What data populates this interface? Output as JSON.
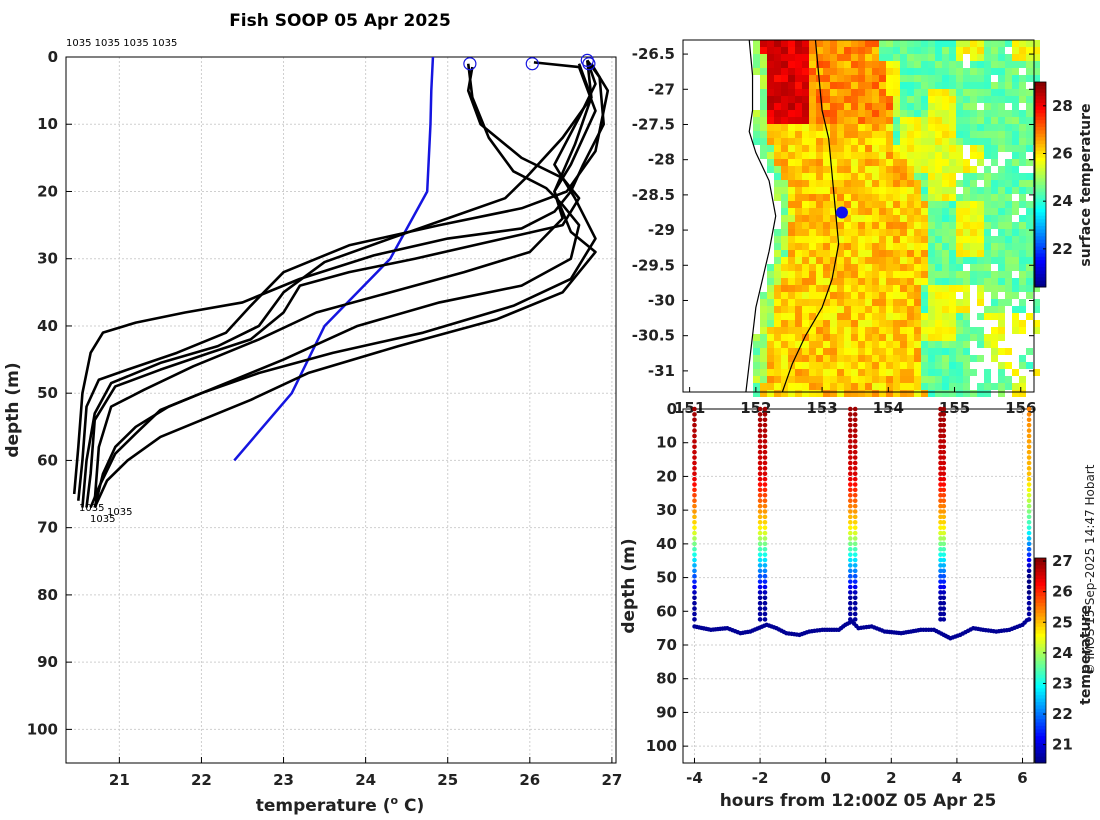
{
  "figure": {
    "title": "Fish SOOP 05 Apr 2025",
    "credit": "© IMOS 15-Sep-2025 14:47 Hobart"
  },
  "chart_data": [
    {
      "name": "profiles",
      "type": "line",
      "title": "Fish SOOP 05 Apr 2025",
      "xlabel": "temperature (o C)",
      "ylabel": "depth (m)",
      "xlim": [
        20.35,
        27.05
      ],
      "ylim": [
        105,
        0
      ],
      "xticks": [
        21,
        22,
        23,
        24,
        25,
        26,
        27
      ],
      "yticks": [
        0,
        10,
        20,
        30,
        40,
        50,
        60,
        70,
        80,
        90,
        100
      ],
      "top_labels": "1035 1035 1035 1035",
      "bottom_labels": [
        "1035",
        "1035",
        "1035"
      ],
      "reference": {
        "name": "climatology",
        "color": "#1515e0",
        "points": [
          [
            24.82,
            0
          ],
          [
            24.8,
            5
          ],
          [
            24.79,
            10
          ],
          [
            24.75,
            20
          ],
          [
            24.3,
            30
          ],
          [
            23.5,
            40
          ],
          [
            23.1,
            50
          ],
          [
            22.4,
            60
          ]
        ]
      },
      "series_color": "#000000",
      "series": [
        {
          "points": [
            [
              26.7,
              0.5
            ],
            [
              26.85,
              3
            ],
            [
              26.9,
              10
            ],
            [
              26.65,
              16
            ],
            [
              26.5,
              20
            ],
            [
              26.3,
              23
            ],
            [
              25.9,
              25.5
            ],
            [
              25.0,
              27
            ],
            [
              24.1,
              29.5
            ],
            [
              23.2,
              33
            ],
            [
              22.5,
              36.5
            ],
            [
              21.8,
              38
            ],
            [
              21.2,
              39.5
            ],
            [
              20.8,
              41
            ],
            [
              20.65,
              44
            ],
            [
              20.55,
              50
            ],
            [
              20.5,
              58
            ],
            [
              20.45,
              65
            ]
          ]
        },
        {
          "points": [
            [
              26.75,
              1
            ],
            [
              26.95,
              5
            ],
            [
              26.8,
              14
            ],
            [
              26.45,
              20
            ],
            [
              25.9,
              22.5
            ],
            [
              24.9,
              25
            ],
            [
              23.8,
              28
            ],
            [
              23.0,
              32
            ],
            [
              22.6,
              37
            ],
            [
              22.3,
              41
            ],
            [
              21.7,
              44
            ],
            [
              21.1,
              46.5
            ],
            [
              20.75,
              48
            ],
            [
              20.6,
              52
            ],
            [
              20.55,
              60
            ],
            [
              20.5,
              66
            ]
          ]
        },
        {
          "points": [
            [
              26.6,
              1
            ],
            [
              26.75,
              6
            ],
            [
              26.4,
              12
            ],
            [
              25.95,
              18
            ],
            [
              25.7,
              21
            ],
            [
              25.0,
              24
            ],
            [
              24.3,
              27
            ],
            [
              23.5,
              30.5
            ],
            [
              23.0,
              35
            ],
            [
              22.7,
              40
            ],
            [
              22.2,
              43
            ],
            [
              21.5,
              45.5
            ],
            [
              20.9,
              48.5
            ],
            [
              20.7,
              53
            ],
            [
              20.6,
              60
            ],
            [
              20.55,
              67
            ]
          ]
        },
        {
          "points": [
            [
              25.3,
              1.5
            ],
            [
              25.25,
              5
            ],
            [
              25.4,
              10
            ],
            [
              25.9,
              15
            ],
            [
              26.4,
              18
            ],
            [
              26.6,
              21
            ],
            [
              26.4,
              25
            ],
            [
              25.5,
              27.5
            ],
            [
              24.6,
              30
            ],
            [
              23.8,
              32
            ],
            [
              23.2,
              34
            ],
            [
              23.0,
              38
            ],
            [
              22.6,
              42
            ],
            [
              22.1,
              44
            ],
            [
              21.5,
              46.5
            ],
            [
              20.95,
              49
            ],
            [
              20.7,
              54
            ],
            [
              20.65,
              62
            ],
            [
              20.6,
              67
            ]
          ]
        },
        {
          "points": [
            [
              26.05,
              0.8
            ],
            [
              26.6,
              1.5
            ],
            [
              26.8,
              8
            ],
            [
              26.5,
              16
            ],
            [
              26.3,
              20
            ],
            [
              26.4,
              24
            ],
            [
              26.0,
              29
            ],
            [
              25.2,
              32
            ],
            [
              24.3,
              35
            ],
            [
              23.4,
              38
            ],
            [
              22.7,
              42
            ],
            [
              21.9,
              46
            ],
            [
              21.3,
              49.5
            ],
            [
              20.9,
              52
            ],
            [
              20.75,
              58
            ],
            [
              20.7,
              66
            ]
          ]
        },
        {
          "points": [
            [
              26.7,
              0.5
            ],
            [
              26.8,
              4
            ],
            [
              26.6,
              9
            ],
            [
              26.3,
              16
            ],
            [
              26.55,
              21
            ],
            [
              26.8,
              27
            ],
            [
              26.5,
              33
            ],
            [
              25.8,
              37
            ],
            [
              24.7,
              41
            ],
            [
              23.6,
              44
            ],
            [
              22.7,
              47
            ],
            [
              22.0,
              50
            ],
            [
              21.5,
              52.5
            ],
            [
              21.2,
              56
            ],
            [
              20.95,
              59
            ],
            [
              20.75,
              64
            ],
            [
              20.65,
              67
            ]
          ]
        },
        {
          "points": [
            [
              25.25,
              1
            ],
            [
              25.3,
              6
            ],
            [
              25.5,
              12
            ],
            [
              25.8,
              17
            ],
            [
              26.2,
              19.5
            ],
            [
              26.4,
              22
            ],
            [
              26.6,
              25
            ],
            [
              26.5,
              30
            ],
            [
              25.9,
              34
            ],
            [
              24.9,
              36.5
            ],
            [
              23.9,
              40
            ],
            [
              23.0,
              45
            ],
            [
              22.2,
              49
            ],
            [
              21.6,
              52
            ],
            [
              21.2,
              55
            ],
            [
              20.95,
              58
            ],
            [
              20.8,
              62
            ],
            [
              20.7,
              67
            ]
          ]
        },
        {
          "points": [
            [
              26.7,
              0.5
            ],
            [
              26.75,
              6
            ],
            [
              26.55,
              13
            ],
            [
              26.3,
              20
            ],
            [
              26.5,
              26
            ],
            [
              26.8,
              29
            ],
            [
              26.4,
              35
            ],
            [
              25.6,
              39
            ],
            [
              24.4,
              43
            ],
            [
              23.3,
              47
            ],
            [
              22.6,
              51
            ],
            [
              22.0,
              54
            ],
            [
              21.5,
              56.5
            ],
            [
              21.1,
              60
            ],
            [
              20.85,
              63
            ],
            [
              20.7,
              67
            ]
          ]
        }
      ],
      "start_markers": [
        [
          25.27,
          1
        ],
        [
          26.03,
          1
        ],
        [
          26.7,
          0.5
        ],
        [
          26.72,
          1
        ]
      ]
    },
    {
      "name": "sst-map",
      "type": "heatmap",
      "colorbar_label": "surface temperature",
      "clim": [
        20.4,
        29.0
      ],
      "colorbar_ticks": [
        22,
        24,
        26,
        28
      ],
      "xlim": [
        150.9,
        156.2
      ],
      "ylim": [
        -31.3,
        -26.3
      ],
      "xticks": [
        151,
        152,
        153,
        154,
        155,
        156
      ],
      "yticks": [
        -26.5,
        -27,
        -27.5,
        -28,
        -28.5,
        -29,
        -29.5,
        -30,
        -30.5,
        -31
      ],
      "position_marker": [
        153.3,
        -28.75
      ],
      "coastline": [
        [
          151.9,
          -26.3
        ],
        [
          151.95,
          -26.8
        ],
        [
          151.95,
          -27.3
        ],
        [
          151.9,
          -27.6
        ],
        [
          152.0,
          -27.9
        ],
        [
          152.2,
          -28.3
        ],
        [
          152.3,
          -28.8
        ],
        [
          152.2,
          -29.3
        ],
        [
          152.1,
          -29.7
        ],
        [
          152.0,
          -30.1
        ],
        [
          151.95,
          -30.5
        ],
        [
          151.9,
          -30.9
        ],
        [
          151.85,
          -31.3
        ]
      ],
      "isobath": [
        [
          152.9,
          -26.3
        ],
        [
          152.95,
          -26.8
        ],
        [
          153.0,
          -27.3
        ],
        [
          153.1,
          -27.7
        ],
        [
          153.15,
          -28.2
        ],
        [
          153.2,
          -28.7
        ],
        [
          153.25,
          -29.2
        ],
        [
          153.15,
          -29.7
        ],
        [
          153.0,
          -30.1
        ],
        [
          152.75,
          -30.5
        ],
        [
          152.55,
          -30.9
        ],
        [
          152.4,
          -31.3
        ]
      ]
    },
    {
      "name": "depth-time",
      "type": "scatter",
      "xlabel": "hours from 12:00Z 05 Apr 25",
      "ylabel": "depth (m)",
      "colorbar_label": "temperature",
      "clim": [
        20.4,
        27.1
      ],
      "colorbar_ticks": [
        21,
        22,
        23,
        24,
        25,
        26,
        27
      ],
      "xlim": [
        -4.35,
        6.35
      ],
      "ylim": [
        105,
        0
      ],
      "xticks": [
        -4,
        -2,
        0,
        2,
        4,
        6
      ],
      "yticks": [
        0,
        10,
        20,
        30,
        40,
        50,
        60,
        70,
        80,
        90,
        100
      ],
      "profile_times": [
        -4.0,
        -2.0,
        -1.85,
        0.75,
        0.9,
        3.5,
        3.6,
        6.2
      ],
      "bottom_track": [
        [
          -4.0,
          64.5
        ],
        [
          -3.5,
          65.5
        ],
        [
          -3.0,
          65
        ],
        [
          -2.6,
          66.5
        ],
        [
          -2.3,
          66
        ],
        [
          -1.8,
          64
        ],
        [
          -1.5,
          65
        ],
        [
          -1.2,
          66.5
        ],
        [
          -0.8,
          67
        ],
        [
          -0.5,
          66
        ],
        [
          -0.1,
          65.5
        ],
        [
          0.4,
          65.5
        ],
        [
          0.6,
          64
        ],
        [
          0.8,
          63
        ],
        [
          1.0,
          65
        ],
        [
          1.4,
          64.5
        ],
        [
          1.8,
          66
        ],
        [
          2.3,
          66.5
        ],
        [
          2.9,
          65.5
        ],
        [
          3.3,
          65.5
        ],
        [
          3.6,
          67
        ],
        [
          3.8,
          68
        ],
        [
          4.1,
          67
        ],
        [
          4.5,
          65
        ],
        [
          4.8,
          65.5
        ],
        [
          5.2,
          66
        ],
        [
          5.6,
          65.5
        ],
        [
          6.0,
          64
        ],
        [
          6.2,
          62
        ]
      ]
    }
  ]
}
